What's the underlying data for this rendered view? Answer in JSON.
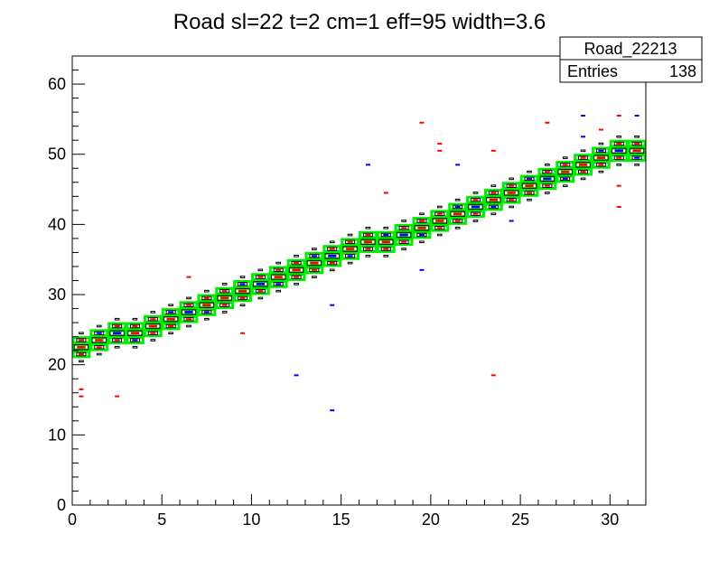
{
  "chart_data": {
    "type": "heatmap",
    "title": "Road sl=22 t=2 cm=1 eff=95 width=3.6",
    "xlabel": "",
    "ylabel": "",
    "xlim": [
      0,
      32
    ],
    "ylim": [
      0,
      64
    ],
    "x_ticks": [
      "0",
      "5",
      "10",
      "15",
      "20",
      "25",
      "30"
    ],
    "y_ticks": [
      "0",
      "10",
      "20",
      "30",
      "40",
      "50",
      "60"
    ],
    "grid": false,
    "stats_box": {
      "name": "Road_22213",
      "entries_label": "Entries",
      "entries_value": "138",
      "placement": "top-right"
    },
    "road": {
      "color": "#00ee00",
      "band_width": 3.6,
      "intercept": 21.7,
      "slope": 0.93
    },
    "layers": [
      {
        "color": "#000000",
        "style": "outline"
      },
      {
        "color": "#ff0000",
        "style": "filled"
      },
      {
        "color": "#0000ff",
        "style": "filled"
      }
    ],
    "outliers": [
      {
        "x": 0.5,
        "y": 15.5,
        "color": "#ff0000"
      },
      {
        "x": 0.5,
        "y": 16.5,
        "color": "#ff0000"
      },
      {
        "x": 2.5,
        "y": 15.5,
        "color": "#ff0000"
      },
      {
        "x": 6.5,
        "y": 32.5,
        "color": "#ff0000"
      },
      {
        "x": 9.5,
        "y": 24.5,
        "color": "#ff0000"
      },
      {
        "x": 12.5,
        "y": 18.5,
        "color": "#0000ff"
      },
      {
        "x": 14.5,
        "y": 13.5,
        "color": "#0000ff"
      },
      {
        "x": 14.5,
        "y": 28.5,
        "color": "#0000ff"
      },
      {
        "x": 16.5,
        "y": 48.5,
        "color": "#0000ff"
      },
      {
        "x": 17.5,
        "y": 44.5,
        "color": "#ff0000"
      },
      {
        "x": 19.5,
        "y": 54.5,
        "color": "#ff0000"
      },
      {
        "x": 19.5,
        "y": 33.5,
        "color": "#0000ff"
      },
      {
        "x": 20.5,
        "y": 51.5,
        "color": "#ff0000"
      },
      {
        "x": 20.5,
        "y": 50.5,
        "color": "#ff0000"
      },
      {
        "x": 21.5,
        "y": 48.5,
        "color": "#0000ff"
      },
      {
        "x": 23.5,
        "y": 50.5,
        "color": "#ff0000"
      },
      {
        "x": 23.5,
        "y": 18.5,
        "color": "#ff0000"
      },
      {
        "x": 24.5,
        "y": 40.5,
        "color": "#0000ff"
      },
      {
        "x": 26.5,
        "y": 54.5,
        "color": "#ff0000"
      },
      {
        "x": 28.5,
        "y": 55.5,
        "color": "#0000ff"
      },
      {
        "x": 28.5,
        "y": 52.5,
        "color": "#0000ff"
      },
      {
        "x": 29.5,
        "y": 53.5,
        "color": "#ff0000"
      },
      {
        "x": 30.5,
        "y": 55.5,
        "color": "#ff0000"
      },
      {
        "x": 30.5,
        "y": 42.5,
        "color": "#ff0000"
      },
      {
        "x": 30.5,
        "y": 45.5,
        "color": "#ff0000"
      },
      {
        "x": 31.5,
        "y": 55.5,
        "color": "#0000ff"
      }
    ]
  }
}
